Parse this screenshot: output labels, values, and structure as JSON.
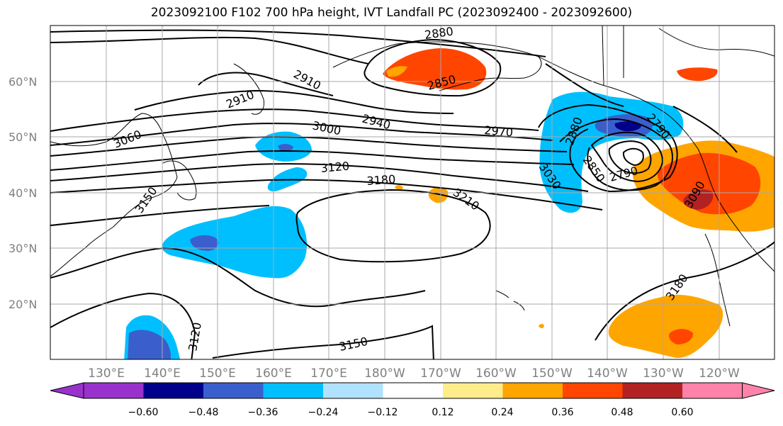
{
  "title": "2023092100 F102 700 hPa height, IVT Landfall PC (2023092400 - 2023092600)",
  "lat_labels": [
    "60°N",
    "50°N",
    "40°N",
    "30°N",
    "20°N"
  ],
  "lon_labels": [
    "130°E",
    "140°E",
    "150°E",
    "160°E",
    "170°E",
    "180°W",
    "170°W",
    "160°W",
    "150°W",
    "140°W",
    "130°W",
    "120°W"
  ],
  "colorbar": {
    "ticks": [
      "−0.60",
      "−0.48",
      "−0.36",
      "−0.24",
      "−0.12",
      "0.12",
      "0.24",
      "0.36",
      "0.48",
      "0.60"
    ],
    "colors": [
      "#9932CC",
      "#00008B",
      "#3A5FCD",
      "#00BFFF",
      "#B0E2FF",
      "#FFFFFF",
      "#FFEC8B",
      "#FFA500",
      "#FF4500",
      "#B22222",
      "#FF82AB"
    ]
  },
  "contour_labels": [
    "2880",
    "2850",
    "2910",
    "2910",
    "2940",
    "3000",
    "2970",
    "3060",
    "3120",
    "3180",
    "3210",
    "3150",
    "3150",
    "3120",
    "3150",
    "2880",
    "3030",
    "2850",
    "2790",
    "2790",
    "3090",
    "3180"
  ],
  "colors": {
    "line": "#000000",
    "grid": "#a9a9a9",
    "tick_label": "#808080"
  }
}
